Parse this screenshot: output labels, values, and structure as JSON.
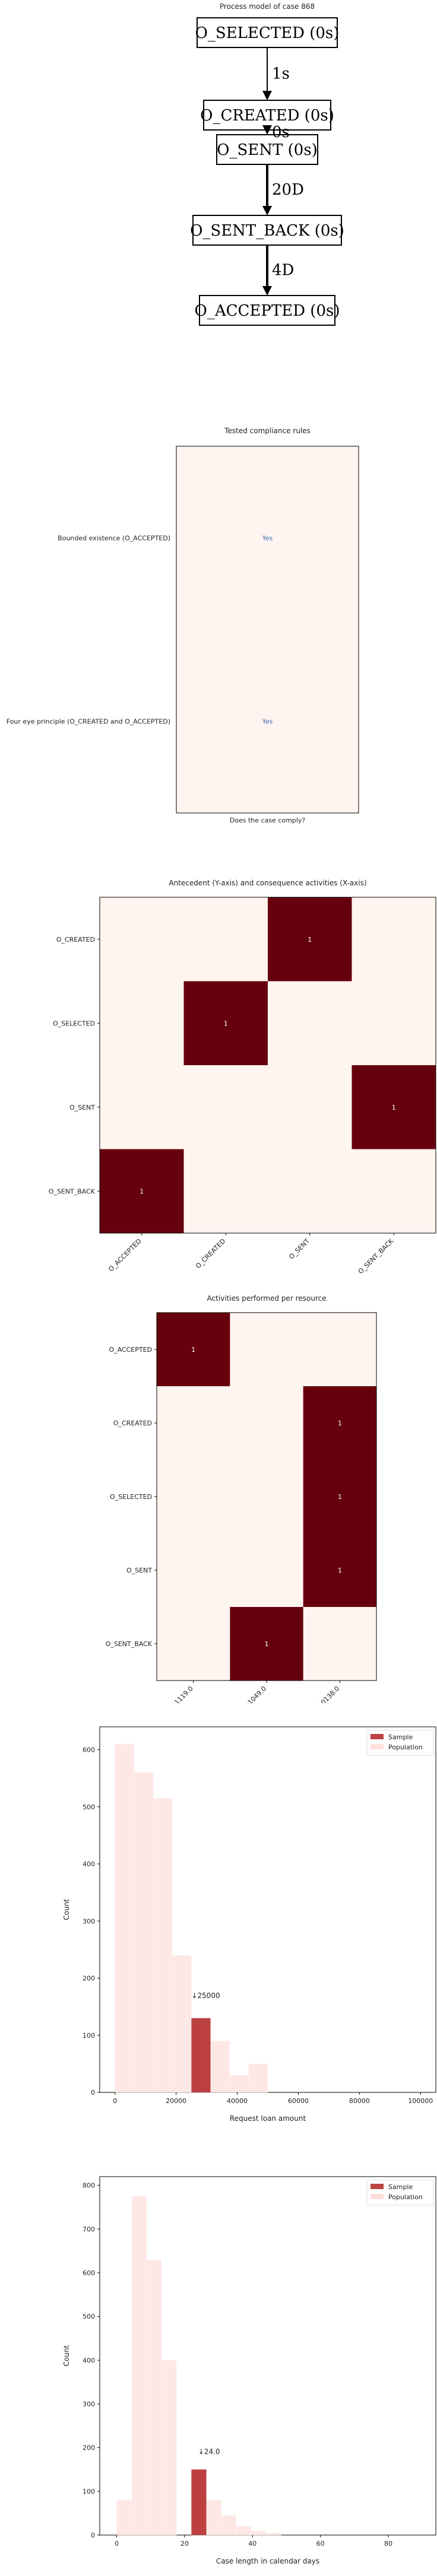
{
  "chart_data": [
    {
      "type": "process_graph",
      "title": "Process model of case 868",
      "nodes": [
        "O_SELECTED (0s)",
        "O_CREATED (0s)",
        "O_SENT (0s)",
        "O_SENT_BACK (0s)",
        "O_ACCEPTED (0s)"
      ],
      "edges": [
        {
          "from": "O_SELECTED (0s)",
          "to": "O_CREATED (0s)",
          "label": "1s"
        },
        {
          "from": "O_CREATED (0s)",
          "to": "O_SENT (0s)",
          "label": "0s"
        },
        {
          "from": "O_SENT (0s)",
          "to": "O_SENT_BACK (0s)",
          "label": "20D"
        },
        {
          "from": "O_SENT_BACK (0s)",
          "to": "O_ACCEPTED (0s)",
          "label": "4D"
        }
      ]
    },
    {
      "type": "table",
      "title": "Tested compliance rules",
      "xlabel": "Does the case comply?",
      "rows": [
        "Bounded existence (O_ACCEPTED)",
        "Four eye principle (O_CREATED and O_ACCEPTED)"
      ],
      "values": [
        "Yes",
        "Yes"
      ]
    },
    {
      "type": "heatmap",
      "title": "Antecedent (Y-axis) and consequence activities (X-axis)",
      "rows": [
        "O_CREATED",
        "O_SELECTED",
        "O_SENT",
        "O_SENT_BACK"
      ],
      "cols": [
        "O_ACCEPTED",
        "O_CREATED",
        "O_SENT",
        "O_SENT_BACK"
      ],
      "values": [
        [
          0,
          0,
          1,
          0
        ],
        [
          0,
          1,
          0,
          0
        ],
        [
          0,
          0,
          0,
          1
        ],
        [
          1,
          0,
          0,
          0
        ]
      ]
    },
    {
      "type": "heatmap",
      "title": "Activities performed per resource",
      "rows": [
        "O_ACCEPTED",
        "O_CREATED",
        "O_SELECTED",
        "O_SENT",
        "O_SENT_BACK"
      ],
      "cols": [
        "11119.0",
        "11049.0",
        "10138.0"
      ],
      "values": [
        [
          1,
          0,
          0
        ],
        [
          0,
          0,
          1
        ],
        [
          0,
          0,
          1
        ],
        [
          0,
          0,
          1
        ],
        [
          0,
          1,
          0
        ]
      ]
    },
    {
      "type": "histogram",
      "xlabel": "Request loan amount",
      "ylabel": "Count",
      "xlim": [
        -5000,
        105000
      ],
      "ylim": [
        0,
        640
      ],
      "xticks": [
        0,
        20000,
        40000,
        60000,
        80000,
        100000
      ],
      "yticks": [
        0,
        100,
        200,
        300,
        400,
        500,
        600
      ],
      "bin_width": 6250,
      "population_bins": [
        {
          "start": 0,
          "count": 610
        },
        {
          "start": 6250,
          "count": 560
        },
        {
          "start": 12500,
          "count": 515
        },
        {
          "start": 18750,
          "count": 240
        },
        {
          "start": 25000,
          "count": 130
        },
        {
          "start": 31250,
          "count": 90
        },
        {
          "start": 37500,
          "count": 30
        },
        {
          "start": 43750,
          "count": 50
        }
      ],
      "sample_bin": {
        "start": 25000,
        "count": 130
      },
      "annotation": "↓25000",
      "annotation_x": 25000,
      "annotation_y": 165,
      "legend": [
        "Sample",
        "Population"
      ],
      "legend_position": "top-right"
    },
    {
      "type": "histogram",
      "xlabel": "Case length in calendar days",
      "ylabel": "Count",
      "xlim": [
        -5,
        94
      ],
      "ylim": [
        0,
        820
      ],
      "xticks": [
        0,
        20,
        40,
        60,
        80
      ],
      "yticks": [
        0,
        100,
        200,
        300,
        400,
        500,
        600,
        700,
        800
      ],
      "bin_width": 4.4,
      "population_bins": [
        {
          "start": 0,
          "count": 80
        },
        {
          "start": 4.4,
          "count": 775
        },
        {
          "start": 8.8,
          "count": 630
        },
        {
          "start": 13.2,
          "count": 400
        },
        {
          "start": 17.6,
          "count": 0
        },
        {
          "start": 22,
          "count": 150
        },
        {
          "start": 26.4,
          "count": 80
        },
        {
          "start": 30.8,
          "count": 45
        },
        {
          "start": 35.2,
          "count": 20
        },
        {
          "start": 39.6,
          "count": 10
        },
        {
          "start": 44,
          "count": 5
        }
      ],
      "sample_bin": {
        "start": 22,
        "count": 150
      },
      "annotation": "↓24.0",
      "annotation_x": 24,
      "annotation_y": 185,
      "legend": [
        "Sample",
        "Population"
      ],
      "legend_position": "top-right"
    }
  ]
}
